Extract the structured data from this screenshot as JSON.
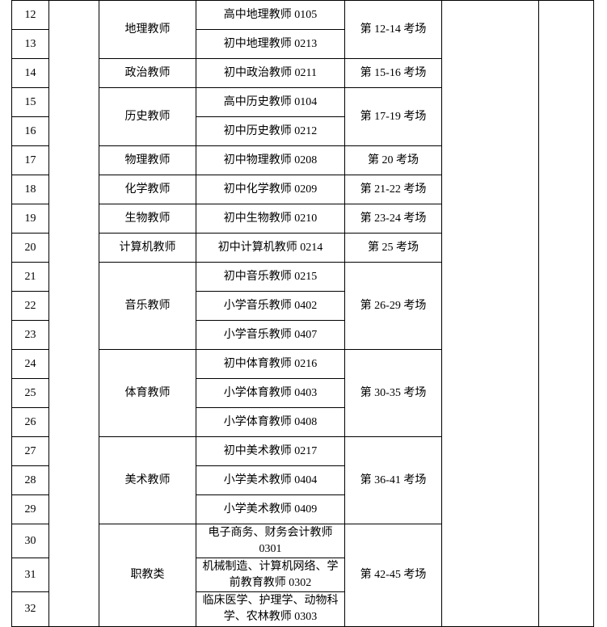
{
  "table": {
    "columns": {
      "num_width": 46,
      "blank1_width": 62,
      "cat_width": 120,
      "post_width": 184,
      "room_width": 120,
      "blank2_width": 120,
      "blank3_width": 68
    },
    "colors": {
      "border": "#000000",
      "background": "#ffffff",
      "text": "#000000"
    },
    "font": {
      "family": "SimSun",
      "size_pt": 10.5
    },
    "rows": [
      {
        "num": "12",
        "category": "地理教师",
        "post": "高中地理教师 0105",
        "room": "第 12-14 考场",
        "cat_rowspan": 2,
        "room_rowspan": 2
      },
      {
        "num": "13",
        "post": "初中地理教师 0213"
      },
      {
        "num": "14",
        "category": "政治教师",
        "post": "初中政治教师 0211",
        "room": "第 15-16 考场",
        "cat_rowspan": 1,
        "room_rowspan": 1
      },
      {
        "num": "15",
        "category": "历史教师",
        "post": "高中历史教师 0104",
        "room": "第 17-19 考场",
        "cat_rowspan": 2,
        "room_rowspan": 2
      },
      {
        "num": "16",
        "post": "初中历史教师 0212"
      },
      {
        "num": "17",
        "category": "物理教师",
        "post": "初中物理教师 0208",
        "room": "第 20 考场",
        "cat_rowspan": 1,
        "room_rowspan": 1
      },
      {
        "num": "18",
        "category": "化学教师",
        "post": "初中化学教师 0209",
        "room": "第 21-22 考场",
        "cat_rowspan": 1,
        "room_rowspan": 1
      },
      {
        "num": "19",
        "category": "生物教师",
        "post": "初中生物教师 0210",
        "room": "第 23-24 考场",
        "cat_rowspan": 1,
        "room_rowspan": 1
      },
      {
        "num": "20",
        "category": "计算机教师",
        "post": "初中计算机教师 0214",
        "room": "第 25 考场",
        "cat_rowspan": 1,
        "room_rowspan": 1
      },
      {
        "num": "21",
        "category": "音乐教师",
        "post": "初中音乐教师 0215",
        "room": "第 26-29 考场",
        "cat_rowspan": 3,
        "room_rowspan": 3
      },
      {
        "num": "22",
        "post": "小学音乐教师 0402"
      },
      {
        "num": "23",
        "post": "小学音乐教师 0407"
      },
      {
        "num": "24",
        "category": "体育教师",
        "post": "初中体育教师 0216",
        "room": "第 30-35 考场",
        "cat_rowspan": 3,
        "room_rowspan": 3
      },
      {
        "num": "25",
        "post": "小学体育教师 0403"
      },
      {
        "num": "26",
        "post": "小学体育教师 0408"
      },
      {
        "num": "27",
        "category": "美术教师",
        "post": "初中美术教师 0217",
        "room": "第 36-41 考场",
        "cat_rowspan": 3,
        "room_rowspan": 3
      },
      {
        "num": "28",
        "post": "小学美术教师 0404"
      },
      {
        "num": "29",
        "post": "小学美术教师 0409"
      },
      {
        "num": "30",
        "category": "职教类",
        "post": "电子商务、财务会计教师 0301",
        "room": "第 42-45 考场",
        "cat_rowspan": 3,
        "room_rowspan": 3,
        "tall": true
      },
      {
        "num": "31",
        "post": "机械制造、计算机网络、学前教育教师 0302",
        "tall": true
      },
      {
        "num": "32",
        "post": "临床医学、护理学、动物科学、农林教师 0303",
        "tall": true
      }
    ]
  }
}
